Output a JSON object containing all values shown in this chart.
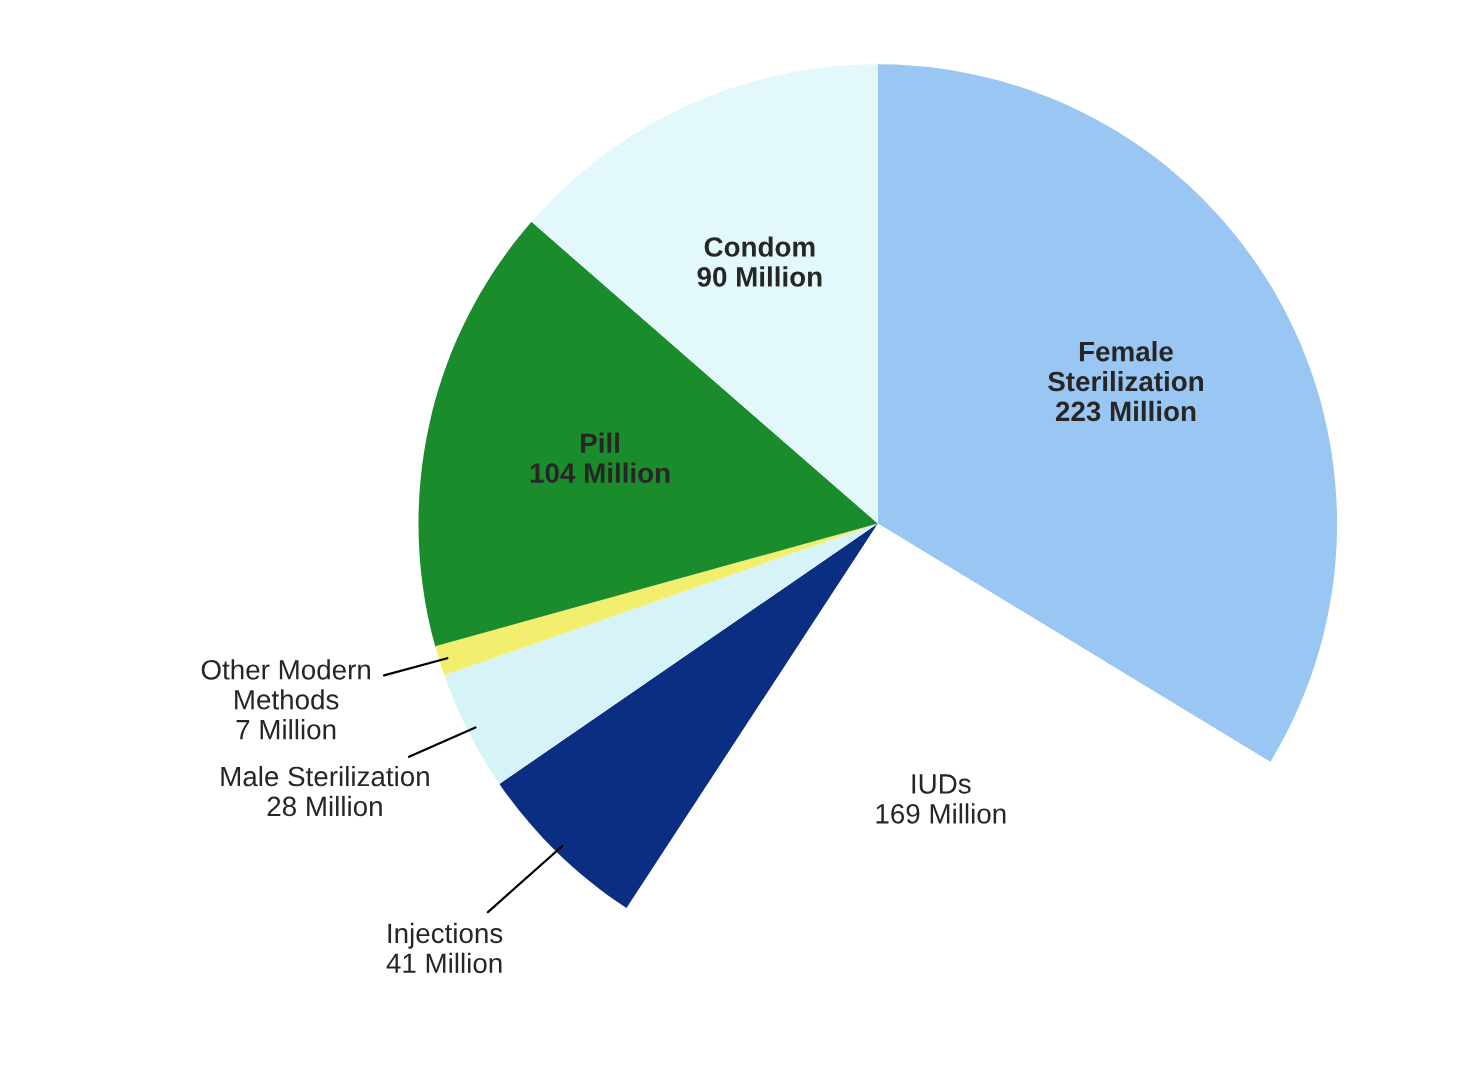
{
  "chart_data": {
    "type": "pie",
    "categories": [
      "Female\nSterilization",
      "IUDs",
      "Injections",
      "Male Sterilization",
      "Other Modern\nMethods",
      "Pill",
      "Condom"
    ],
    "values": [
      223,
      169,
      41,
      28,
      7,
      104,
      90
    ],
    "value_labels": [
      "223 Million",
      "169 Million",
      "41 Million",
      "28 Million",
      "7 Million",
      "104 Million",
      "90 Million"
    ],
    "colors": [
      "#99c6f2",
      "#ffffff",
      "#0b2e82",
      "#d6f3f7",
      "#f3ef6e",
      "#1b8c2c",
      "#e2f8fa"
    ],
    "legend": false
  }
}
